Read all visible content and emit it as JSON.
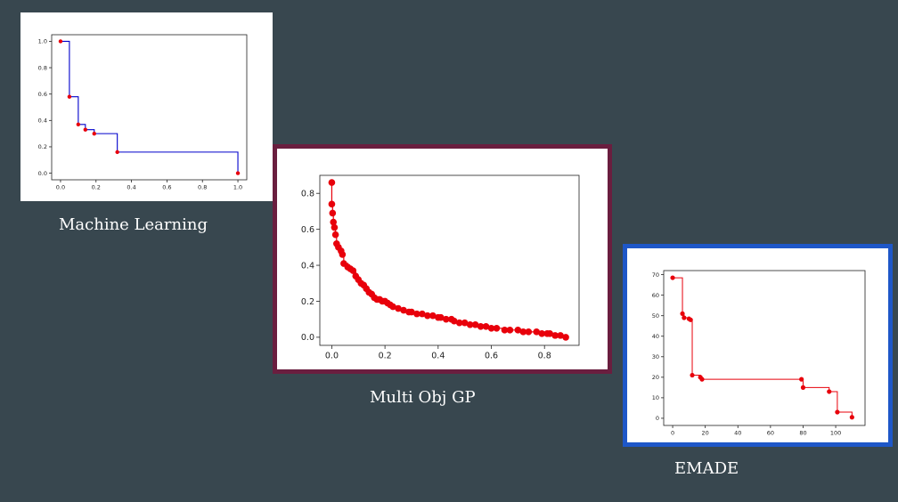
{
  "colors": {
    "background": "#38474f",
    "frame_mog": "#6a1e3f",
    "frame_emade": "#1e57c8",
    "marker": "#e8000b",
    "ml_line": "#0000cc",
    "line_red": "#e8000b"
  },
  "captions": {
    "ml": "Machine Learning",
    "mog": "Multi Obj GP",
    "emade": "EMADE"
  },
  "chart_data": [
    {
      "type": "line",
      "step": true,
      "title": "",
      "xlim": [
        -0.05,
        1.05
      ],
      "ylim": [
        -0.05,
        1.05
      ],
      "xticks": [
        0.0,
        0.2,
        0.4,
        0.6,
        0.8,
        1.0
      ],
      "xtick_labels": [
        "0.0",
        "0.2",
        "0.4",
        "0.6",
        "0.8",
        "1.0"
      ],
      "yticks": [
        0.0,
        0.2,
        0.4,
        0.6,
        0.8,
        1.0
      ],
      "ytick_labels": [
        "0.0",
        "0.2",
        "0.4",
        "0.6",
        "0.8",
        "1.0"
      ],
      "x": [
        0.0,
        0.05,
        0.1,
        0.14,
        0.19,
        0.32,
        1.0
      ],
      "y": [
        1.0,
        0.58,
        0.37,
        0.33,
        0.3,
        0.16,
        0.0
      ]
    },
    {
      "type": "line",
      "step": true,
      "title": "",
      "xlim": [
        -0.045,
        0.93
      ],
      "ylim": [
        -0.045,
        0.9
      ],
      "xticks": [
        0.0,
        0.2,
        0.4,
        0.6,
        0.8
      ],
      "xtick_labels": [
        "0.0",
        "0.2",
        "0.4",
        "0.6",
        "0.8"
      ],
      "yticks": [
        0.0,
        0.2,
        0.4,
        0.6,
        0.8
      ],
      "ytick_labels": [
        "0.0",
        "0.2",
        "0.4",
        "0.6",
        "0.8"
      ],
      "x": [
        0.0,
        0.0,
        0.003,
        0.006,
        0.01,
        0.014,
        0.018,
        0.025,
        0.035,
        0.04,
        0.045,
        0.06,
        0.07,
        0.08,
        0.09,
        0.1,
        0.11,
        0.12,
        0.13,
        0.14,
        0.15,
        0.16,
        0.17,
        0.18,
        0.19,
        0.2,
        0.21,
        0.22,
        0.23,
        0.25,
        0.27,
        0.29,
        0.3,
        0.32,
        0.34,
        0.36,
        0.38,
        0.4,
        0.41,
        0.43,
        0.45,
        0.46,
        0.48,
        0.5,
        0.52,
        0.54,
        0.56,
        0.58,
        0.6,
        0.62,
        0.65,
        0.67,
        0.7,
        0.72,
        0.74,
        0.77,
        0.79,
        0.81,
        0.82,
        0.84,
        0.86,
        0.88
      ],
      "y": [
        0.86,
        0.74,
        0.69,
        0.64,
        0.61,
        0.57,
        0.52,
        0.5,
        0.48,
        0.46,
        0.41,
        0.39,
        0.38,
        0.37,
        0.34,
        0.32,
        0.3,
        0.29,
        0.27,
        0.25,
        0.24,
        0.22,
        0.21,
        0.21,
        0.2,
        0.2,
        0.19,
        0.18,
        0.17,
        0.16,
        0.15,
        0.14,
        0.14,
        0.13,
        0.13,
        0.12,
        0.12,
        0.11,
        0.11,
        0.1,
        0.1,
        0.09,
        0.08,
        0.08,
        0.07,
        0.07,
        0.06,
        0.06,
        0.05,
        0.05,
        0.04,
        0.04,
        0.04,
        0.03,
        0.03,
        0.03,
        0.02,
        0.02,
        0.02,
        0.01,
        0.01,
        0.0
      ]
    },
    {
      "type": "line",
      "step": true,
      "title": "",
      "xlim": [
        -5.5,
        118
      ],
      "ylim": [
        -3.5,
        72
      ],
      "xticks": [
        0,
        20,
        40,
        60,
        80,
        100
      ],
      "xtick_labels": [
        "0",
        "20",
        "40",
        "60",
        "80",
        "100"
      ],
      "yticks": [
        0,
        10,
        20,
        30,
        40,
        50,
        60,
        70
      ],
      "ytick_labels": [
        "0",
        "10",
        "20",
        "30",
        "40",
        "50",
        "60",
        "70"
      ],
      "x": [
        0,
        6,
        7,
        10,
        11,
        12,
        17,
        18,
        79,
        80,
        96,
        101,
        110
      ],
      "y": [
        68.5,
        51,
        49,
        48.5,
        48,
        21,
        20,
        19,
        19,
        15,
        13,
        3,
        0.5
      ]
    }
  ]
}
